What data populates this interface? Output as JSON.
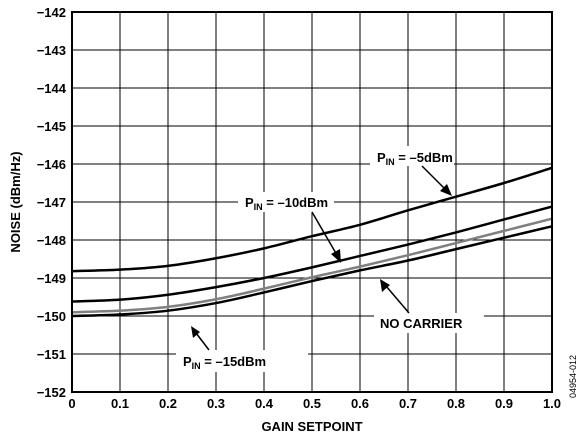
{
  "chart_data": {
    "type": "line",
    "xlabel": "GAIN SETPOINT",
    "ylabel": "NOISE (dBm/Hz)",
    "xlim": [
      0,
      1.0
    ],
    "ylim": [
      -152,
      -142
    ],
    "x_ticks": [
      "0",
      "0.1",
      "0.2",
      "0.3",
      "0.4",
      "0.5",
      "0.6",
      "0.7",
      "0.8",
      "0.9",
      "1.0"
    ],
    "y_ticks": [
      "−142",
      "−143",
      "−144",
      "−145",
      "−146",
      "−147",
      "−148",
      "−149",
      "−150",
      "−151",
      "−152"
    ],
    "grid": true,
    "series": [
      {
        "name": "P_IN = −5dBm",
        "color": "#000000",
        "x": [
          0,
          0.1,
          0.2,
          0.3,
          0.4,
          0.5,
          0.6,
          0.7,
          0.8,
          0.9,
          1.0
        ],
        "y": [
          -148.82,
          -148.78,
          -148.68,
          -148.48,
          -148.22,
          -147.9,
          -147.6,
          -147.22,
          -146.86,
          -146.5,
          -146.1
        ]
      },
      {
        "name": "P_IN = −10dBm",
        "color": "#000000",
        "x": [
          0,
          0.1,
          0.2,
          0.3,
          0.4,
          0.5,
          0.6,
          0.7,
          0.8,
          0.9,
          1.0
        ],
        "y": [
          -149.62,
          -149.57,
          -149.44,
          -149.24,
          -149.0,
          -148.72,
          -148.42,
          -148.12,
          -147.8,
          -147.46,
          -147.12
        ]
      },
      {
        "name": "P_IN = −15dBm",
        "color": "#808080",
        "x": [
          0,
          0.1,
          0.2,
          0.3,
          0.4,
          0.5,
          0.6,
          0.7,
          0.8,
          0.9,
          1.0
        ],
        "y": [
          -149.9,
          -149.86,
          -149.76,
          -149.56,
          -149.28,
          -148.98,
          -148.7,
          -148.4,
          -148.08,
          -147.76,
          -147.44
        ]
      },
      {
        "name": "NO CARRIER",
        "color": "#000000",
        "x": [
          0,
          0.1,
          0.2,
          0.3,
          0.4,
          0.5,
          0.6,
          0.7,
          0.8,
          0.9,
          1.0
        ],
        "y": [
          -150.0,
          -149.96,
          -149.86,
          -149.66,
          -149.38,
          -149.08,
          -148.8,
          -148.54,
          -148.24,
          -147.94,
          -147.64
        ]
      }
    ],
    "annotations": [
      {
        "main": "P",
        "sub": "IN",
        "rest": " = –5dBm"
      },
      {
        "main": "P",
        "sub": "IN",
        "rest": " = –10dBm"
      },
      {
        "main": "NO CARRIER"
      },
      {
        "main": "P",
        "sub": "IN",
        "rest": " = –15dBm"
      }
    ],
    "figure_id": "04954-012"
  }
}
